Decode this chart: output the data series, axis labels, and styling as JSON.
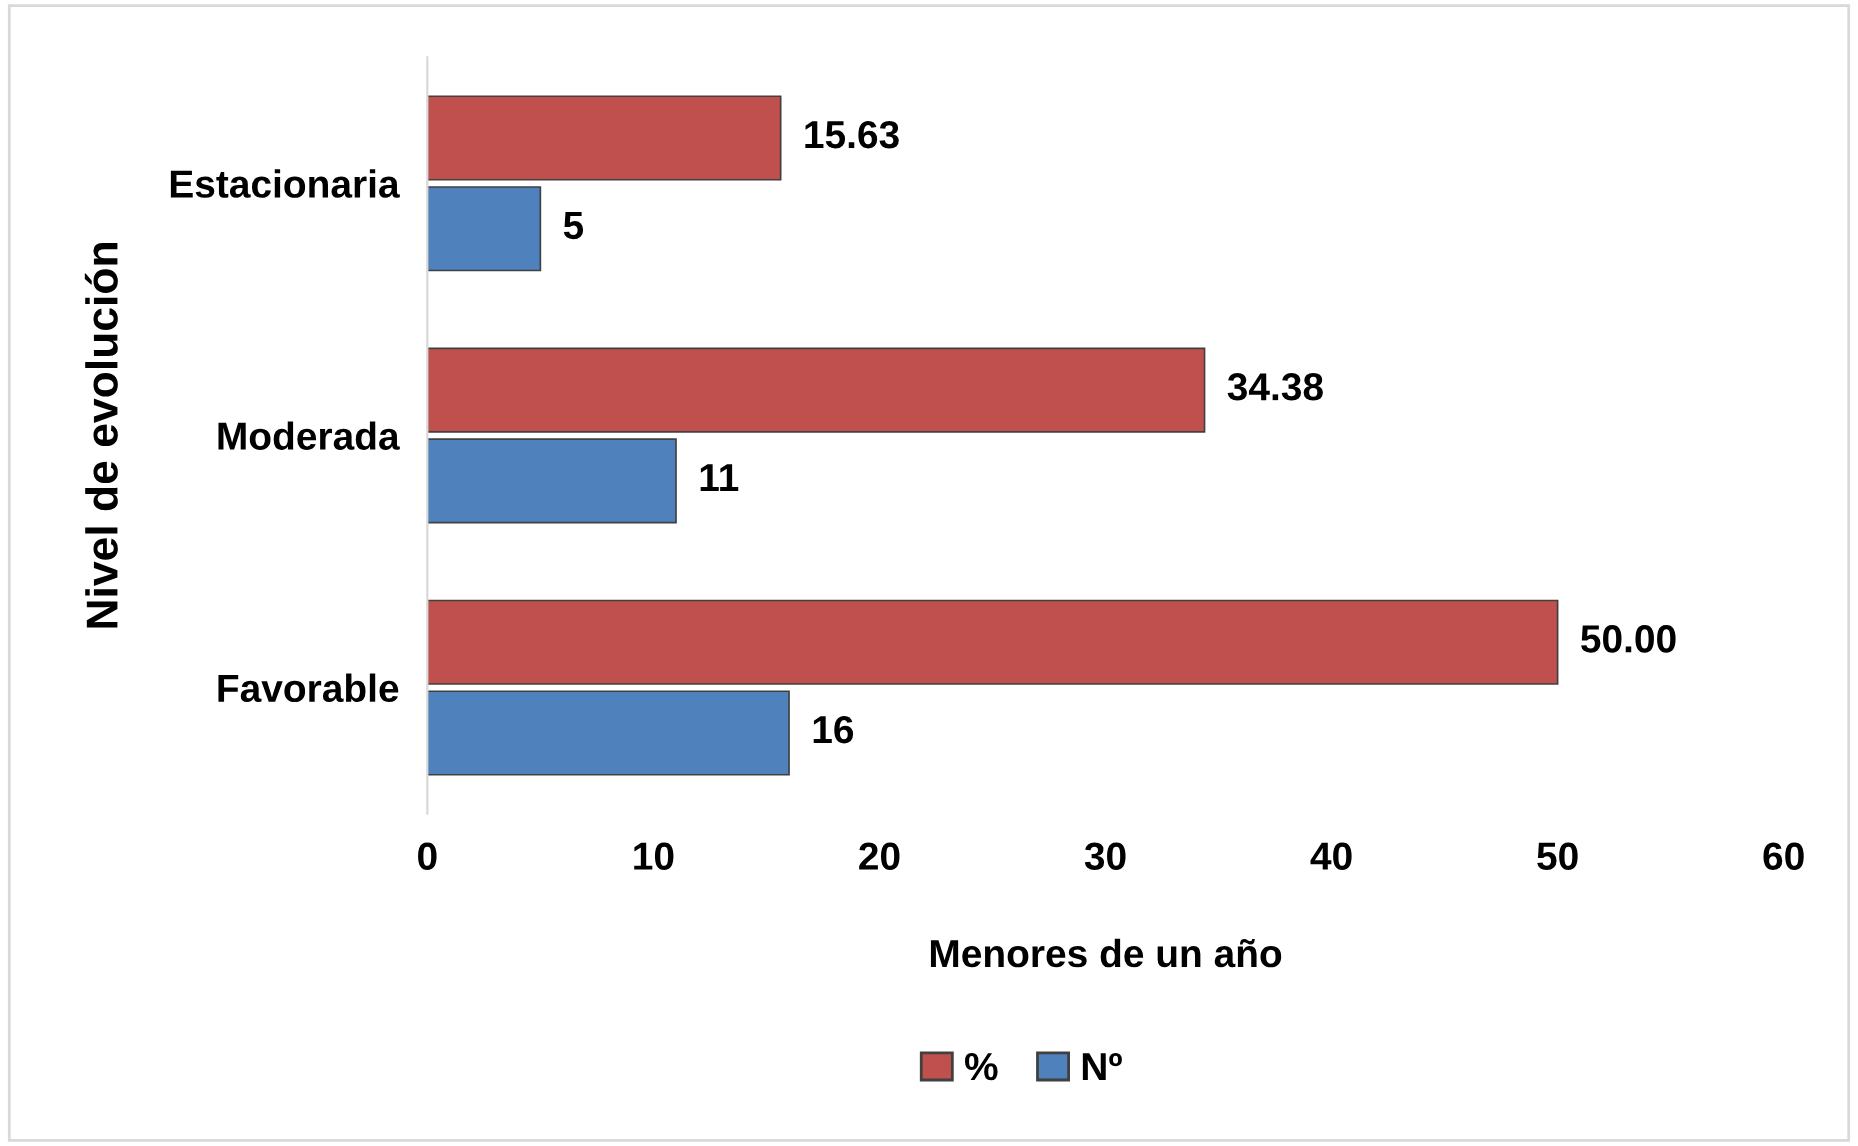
{
  "chart_data": {
    "type": "bar",
    "orientation": "horizontal",
    "xlabel": "Menores de un año",
    "ylabel": "Nivel de evolución",
    "categories": [
      "Estacionaria",
      "Moderada",
      "Favorable"
    ],
    "series": [
      {
        "name": "%",
        "color": "#c0504d",
        "values": [
          15.63,
          34.38,
          50.0
        ],
        "value_labels": [
          "15.63",
          "34.38",
          "50.00"
        ]
      },
      {
        "name": "Nº",
        "color": "#4f81bd",
        "values": [
          5,
          11,
          16
        ],
        "value_labels": [
          "5",
          "11",
          "16"
        ]
      }
    ],
    "xlim": [
      0,
      60
    ],
    "xticks": [
      0,
      10,
      20,
      30,
      40,
      50,
      60
    ],
    "grid": false,
    "legend": "bottom"
  }
}
